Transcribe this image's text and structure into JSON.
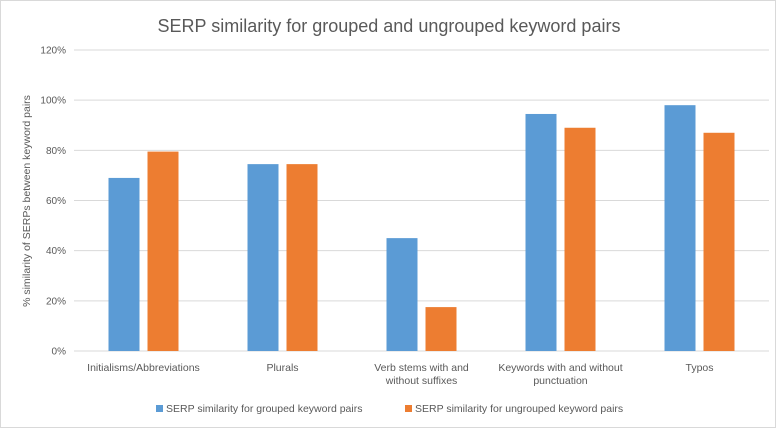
{
  "chart_data": {
    "type": "bar",
    "title": "SERP similarity for grouped and ungrouped keyword pairs",
    "xlabel": "",
    "ylabel": "% similarity of SERPs between  keyword pairs",
    "ylim": [
      0,
      120
    ],
    "yticks": [
      0,
      20,
      40,
      60,
      80,
      100,
      120
    ],
    "ytick_labels": [
      "0%",
      "20%",
      "40%",
      "60%",
      "80%",
      "100%",
      "120%"
    ],
    "grid": true,
    "legend_position": "bottom",
    "categories": [
      [
        "Initialisms/Abbreviations"
      ],
      [
        "Plurals"
      ],
      [
        "Verb stems with and",
        "without suffixes"
      ],
      [
        "Keywords with and without",
        "punctuation"
      ],
      [
        "Typos"
      ]
    ],
    "series": [
      {
        "name": "SERP similarity for grouped keyword pairs",
        "color": "#5b9bd5",
        "values": [
          69,
          74.5,
          45,
          94.5,
          98
        ]
      },
      {
        "name": "SERP similarity for ungrouped keyword pairs",
        "color": "#ed7d31",
        "values": [
          79.5,
          74.5,
          17.5,
          89,
          87
        ]
      }
    ]
  }
}
